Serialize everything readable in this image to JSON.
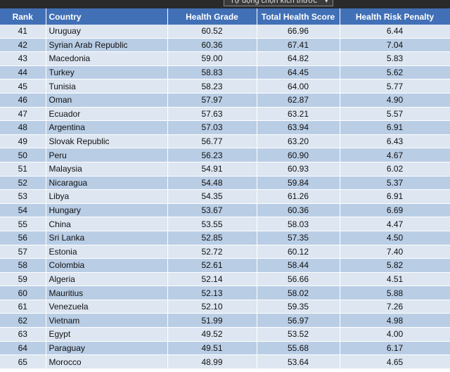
{
  "toolbar": {
    "label": "Tự động chọn kích thước"
  },
  "table": {
    "headers": [
      "Rank",
      "Country",
      "Health Grade",
      "Total Health Score",
      "Health Risk Penalty"
    ],
    "rows": [
      [
        "41",
        "Uruguay",
        "60.52",
        "66.96",
        "6.44"
      ],
      [
        "42",
        "Syrian Arab Republic",
        "60.36",
        "67.41",
        "7.04"
      ],
      [
        "43",
        "Macedonia",
        "59.00",
        "64.82",
        "5.83"
      ],
      [
        "44",
        "Turkey",
        "58.83",
        "64.45",
        "5.62"
      ],
      [
        "45",
        "Tunisia",
        "58.23",
        "64.00",
        "5.77"
      ],
      [
        "46",
        "Oman",
        "57.97",
        "62.87",
        "4.90"
      ],
      [
        "47",
        "Ecuador",
        "57.63",
        "63.21",
        "5.57"
      ],
      [
        "48",
        "Argentina",
        "57.03",
        "63.94",
        "6.91"
      ],
      [
        "49",
        "Slovak Republic",
        "56.77",
        "63.20",
        "6.43"
      ],
      [
        "50",
        "Peru",
        "56.23",
        "60.90",
        "4.67"
      ],
      [
        "51",
        "Malaysia",
        "54.91",
        "60.93",
        "6.02"
      ],
      [
        "52",
        "Nicaragua",
        "54.48",
        "59.84",
        "5.37"
      ],
      [
        "53",
        "Libya",
        "54.35",
        "61.26",
        "6.91"
      ],
      [
        "54",
        "Hungary",
        "53.67",
        "60.36",
        "6.69"
      ],
      [
        "55",
        "China",
        "53.55",
        "58.03",
        "4.47"
      ],
      [
        "56",
        "Sri Lanka",
        "52.85",
        "57.35",
        "4.50"
      ],
      [
        "57",
        "Estonia",
        "52.72",
        "60.12",
        "7.40"
      ],
      [
        "58",
        "Colombia",
        "52.61",
        "58.44",
        "5.82"
      ],
      [
        "59",
        "Algeria",
        "52.14",
        "56.66",
        "4.51"
      ],
      [
        "60",
        "Mauritius",
        "52.13",
        "58.02",
        "5.88"
      ],
      [
        "61",
        "Venezuela",
        "52.10",
        "59.35",
        "7.26"
      ],
      [
        "62",
        "Vietnam",
        "51.99",
        "56.97",
        "4.98"
      ],
      [
        "63",
        "Egypt",
        "49.52",
        "53.52",
        "4.00"
      ],
      [
        "64",
        "Paraguay",
        "49.51",
        "55.68",
        "6.17"
      ],
      [
        "65",
        "Morocco",
        "48.99",
        "53.64",
        "4.65"
      ]
    ]
  }
}
